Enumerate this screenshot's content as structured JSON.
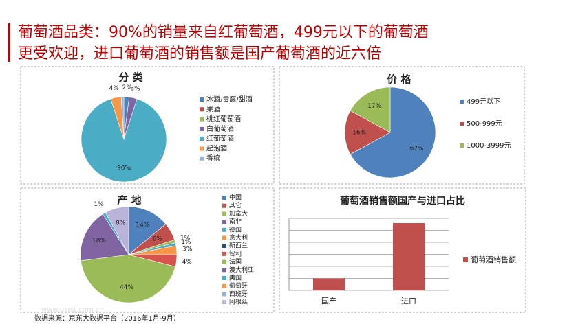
{
  "title_lines": [
    "葡萄酒品类：90%的销量来自红葡萄酒，499元以下的葡萄酒",
    "更受欢迎，进口葡萄酒的销售额是国产葡萄酒的近六倍"
  ],
  "source": "数据来源：京东大数据平台（2016年1月-9月）",
  "watermark": "www.useit.com.cn",
  "chart_data": [
    {
      "type": "pie",
      "title": "分 类",
      "categories": [
        "冰酒/贵腐/甜酒",
        "果酒",
        "桃红葡萄酒",
        "白葡萄酒",
        "红葡萄酒",
        "起泡酒",
        "香槟"
      ],
      "values": [
        2,
        0,
        0,
        3,
        90,
        4,
        1
      ],
      "value_labels": [
        "2%",
        null,
        null,
        "3%",
        "90%",
        "4%",
        null
      ],
      "colors": [
        "#4f81bd",
        "#c0504d",
        "#9bbb59",
        "#8064a2",
        "#4bacc6",
        "#f79646",
        "#95b3d7"
      ]
    },
    {
      "type": "pie",
      "title": "价 格",
      "categories": [
        "499元以下",
        "500-999元",
        "1000-3999元"
      ],
      "values": [
        67,
        16,
        17
      ],
      "value_labels": [
        "67%",
        "16%",
        "17%"
      ],
      "colors": [
        "#4f81bd",
        "#c0504d",
        "#9bbb59"
      ]
    },
    {
      "type": "pie",
      "title": "产 地",
      "categories": [
        "中国",
        "其它",
        "加拿大",
        "南非",
        "德国",
        "意大利",
        "新西兰",
        "智利",
        "法国",
        "澳大利亚",
        "美国",
        "葡萄牙",
        "西班牙",
        "阿根廷"
      ],
      "values": [
        14,
        6,
        1,
        0,
        1,
        3,
        0,
        4,
        44,
        18,
        1,
        0,
        0,
        8
      ],
      "value_labels": [
        "14%",
        "6%",
        "1%",
        null,
        "1%",
        "3%",
        null,
        "4%",
        "44%",
        "18%",
        "1%",
        null,
        null,
        "8%"
      ],
      "colors": [
        "#4f81bd",
        "#c0504d",
        "#9bbb59",
        "#8064a2",
        "#4bacc6",
        "#f79646",
        "#2c4d75",
        "#d9534f",
        "#9bbb59",
        "#8064a2",
        "#4bacc6",
        "#f79646",
        "#95b3d7",
        "#b9b3d9"
      ]
    },
    {
      "type": "bar",
      "title": "葡萄酒销售额国产与进口占比",
      "categories": [
        "国产",
        "进口"
      ],
      "series": [
        {
          "name": "葡萄酒销售额",
          "color": "#c0504d",
          "values": [
            1,
            5.6
          ]
        }
      ],
      "ylim": [
        0,
        6
      ],
      "yticks": [
        0,
        1,
        2,
        3,
        4,
        5,
        6
      ],
      "grid": true
    }
  ]
}
